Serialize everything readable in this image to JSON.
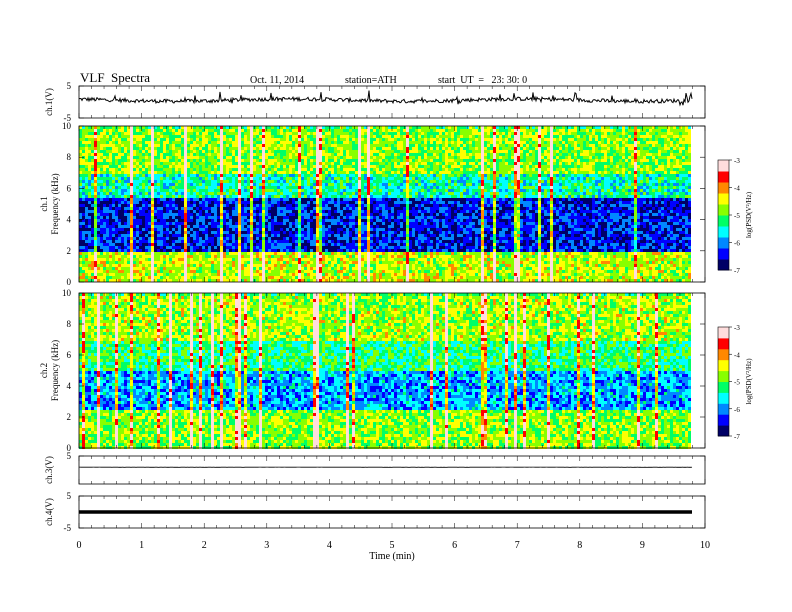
{
  "header": {
    "title": "VLF  Spectra",
    "date": "Oct. 11, 2014",
    "station": "station=ATH",
    "start": "start  UT  =   23: 30: 0"
  },
  "colors": {
    "colormap": [
      "#000066",
      "#0000ff",
      "#0088ff",
      "#00ffff",
      "#00ff66",
      "#88ff00",
      "#ffff00",
      "#ff8800",
      "#ff0000",
      "#ffdddd"
    ],
    "trace": "#000000"
  },
  "chart_data": [
    {
      "id": "ch1-waveform",
      "type": "line",
      "ylabel": "ch.1(V)",
      "ylim": [
        -5,
        5
      ],
      "yticks": [
        "5",
        "-5"
      ],
      "xlim": [
        0,
        10
      ],
      "trace_level": 0.6,
      "trace_noise": 1.2,
      "x_end": 9.8
    },
    {
      "id": "ch1-spectrogram",
      "type": "heatmap",
      "ylabel": "ch.1\nFrequency  (kHz)",
      "ylim": [
        0,
        10
      ],
      "yticks": [
        "0",
        "2",
        "4",
        "6",
        "8",
        "10"
      ],
      "xlim": [
        0,
        10
      ],
      "x_end": 9.8,
      "colorbar": {
        "label": "log(PSD(V²/Hz)",
        "range": [
          -7,
          -3
        ],
        "ticks": [
          "-3",
          "-4",
          "-5",
          "-6",
          "-7"
        ]
      },
      "bands_khz": [
        {
          "from": 0,
          "to": 2,
          "logpsd": -4.6
        },
        {
          "from": 2,
          "to": 5.5,
          "logpsd": -6.4
        },
        {
          "from": 5.5,
          "to": 7,
          "logpsd": -5.4
        },
        {
          "from": 7,
          "to": 10,
          "logpsd": -4.8
        }
      ]
    },
    {
      "id": "ch2-spectrogram",
      "type": "heatmap",
      "ylabel": "ch.2\nFrequency  (kHz)",
      "ylim": [
        0,
        10
      ],
      "yticks": [
        "0",
        "2",
        "4",
        "6",
        "8",
        "10"
      ],
      "xlim": [
        0,
        10
      ],
      "x_end": 9.8,
      "colorbar": {
        "label": "log(PSD(V²/Hz)",
        "range": [
          -7,
          -3
        ],
        "ticks": [
          "-3",
          "-4",
          "-5",
          "-6",
          "-7"
        ]
      },
      "bands_khz": [
        {
          "from": 0,
          "to": 2.5,
          "logpsd": -4.8
        },
        {
          "from": 2.5,
          "to": 5,
          "logpsd": -5.9
        },
        {
          "from": 5,
          "to": 7,
          "logpsd": -5.2
        },
        {
          "from": 7,
          "to": 10,
          "logpsd": -4.7
        }
      ]
    },
    {
      "id": "ch3-waveform",
      "type": "line",
      "ylabel": "ch.3(V)",
      "ylim": [
        -5,
        5
      ],
      "yticks": [
        "5"
      ],
      "xlim": [
        0,
        10
      ],
      "trace_level": 1.0,
      "trace_noise": 0.05,
      "x_end": 9.8
    },
    {
      "id": "ch4-waveform",
      "type": "line",
      "ylabel": "ch.4(V)",
      "ylim": [
        -5,
        5
      ],
      "yticks": [
        "5",
        "-5"
      ],
      "xlim": [
        0,
        10
      ],
      "trace_level": 0.0,
      "trace_noise": 0.0,
      "x_end": 9.8
    }
  ],
  "xaxis": {
    "label": "Time  (min)",
    "ticks": [
      "0",
      "1",
      "2",
      "3",
      "4",
      "5",
      "6",
      "7",
      "8",
      "9",
      "10"
    ]
  }
}
